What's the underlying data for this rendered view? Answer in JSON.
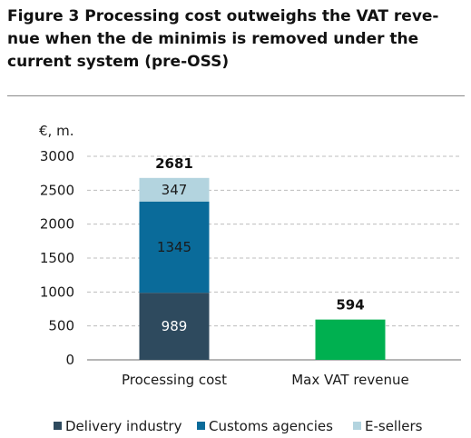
{
  "title": "Figure 3 Processing cost outweighs the VAT revenue when the de minimis is removed under the current system (pre-OSS)",
  "title_lines": [
    "Figure 3 Processing cost outweighs the VAT reve-",
    "nue when the de minimis is removed under the",
    "current system (pre-OSS)"
  ],
  "chart_data": {
    "type": "bar",
    "stacked": true,
    "ylabel": "€, m.",
    "ylim": [
      0,
      3000
    ],
    "yticks": [
      0,
      500,
      1000,
      1500,
      2000,
      2500,
      3000
    ],
    "grid": true,
    "legend_position": "bottom",
    "categories": [
      "Processing cost",
      "Max VAT revenue"
    ],
    "series": [
      {
        "name": "Delivery industry",
        "color": "#2e4a5e",
        "label_color": "#ffffff",
        "values": [
          989,
          null
        ]
      },
      {
        "name": "Customs agencies",
        "color": "#0a6b9a",
        "label_color": "#1a1a1a",
        "values": [
          1345,
          null
        ]
      },
      {
        "name": "E-sellers",
        "color": "#b3d4df",
        "label_color": "#1a1a1a",
        "values": [
          347,
          null
        ]
      },
      {
        "name": "",
        "color": "#00b050",
        "label_color": "#1a1a1a",
        "values": [
          null,
          594
        ],
        "in_legend": false
      }
    ],
    "totals": [
      2681,
      594
    ]
  }
}
